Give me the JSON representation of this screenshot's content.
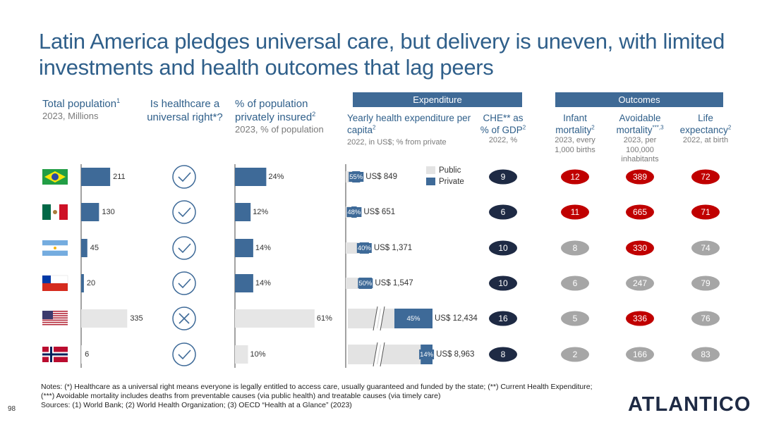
{
  "header": {
    "title": "Latin America pledges universal care, but delivery is uneven, with limited investments and health outcomes that lag peers"
  },
  "groups": {
    "expenditure": "Expenditure",
    "outcomes": "Outcomes"
  },
  "columns": {
    "population": {
      "title": "Total population",
      "sup": "1",
      "subtitle": "2023, Millions",
      "values": [
        211,
        130,
        45,
        20,
        335,
        6
      ],
      "colors": [
        "#3e6a98",
        "#3e6a98",
        "#3e6a98",
        "#3e6a98",
        "#e6e6e6",
        "#e6e6e6"
      ]
    },
    "universal": {
      "title": "Is healthcare a universal right*?",
      "values": [
        true,
        true,
        true,
        true,
        false,
        true
      ],
      "color": "#3e6a98"
    },
    "insured": {
      "title": "% of population privately insured",
      "sup": "2",
      "subtitle": "2023, % of population",
      "values": [
        24,
        12,
        14,
        14,
        61,
        10
      ],
      "value_labels": [
        "24%",
        "12%",
        "14%",
        "14%",
        "61%",
        "10%"
      ],
      "colors": [
        "#3e6a98",
        "#3e6a98",
        "#3e6a98",
        "#3e6a98",
        "#e6e6e6",
        "#e6e6e6"
      ]
    },
    "spend": {
      "title": "Yearly health expenditure per capita",
      "sup": "2",
      "subtitle": "2022, in US$; % from private",
      "values": [
        849,
        651,
        1371,
        1547,
        12434,
        8963
      ],
      "value_labels": [
        "US$ 849",
        "US$ 651",
        "US$ 1,371",
        "US$ 1,547",
        "US$ 12,434",
        "US$ 8,963"
      ],
      "private_share": [
        55,
        48,
        40,
        50,
        45,
        14
      ],
      "private_share_labels": [
        "55%",
        "48%",
        "40%",
        "50%",
        "45%",
        "14%"
      ],
      "axis_break": [
        false,
        false,
        false,
        false,
        true,
        true
      ],
      "legend": [
        "Public",
        "Private"
      ],
      "public_color": "#e3e3e3",
      "private_color": "#3e6a98"
    },
    "che": {
      "title": "CHE** as % of GDP",
      "sup": "2",
      "subtitle": "2022, %",
      "values": [
        9,
        6,
        10,
        10,
        16,
        8
      ],
      "color": "#1e2a44"
    },
    "infant": {
      "title": "Infant mortality",
      "sup": "2",
      "subtitle": "2023, every 1,000 births",
      "values": [
        12,
        11,
        8,
        6,
        5,
        2
      ],
      "colors": [
        "#c00000",
        "#c00000",
        "#a6a6a6",
        "#a6a6a6",
        "#a6a6a6",
        "#a6a6a6"
      ]
    },
    "avoidable": {
      "title": "Avoidable mortality",
      "sup": "***,3",
      "subtitle": "2023, per 100,000 inhabitants",
      "values": [
        389,
        665,
        330,
        247,
        336,
        166
      ],
      "colors": [
        "#c00000",
        "#c00000",
        "#c00000",
        "#a6a6a6",
        "#c00000",
        "#a6a6a6"
      ]
    },
    "life": {
      "title": "Life expectancy",
      "sup": "2",
      "subtitle": "2022, at birth",
      "values": [
        72,
        71,
        74,
        79,
        76,
        83
      ],
      "colors": [
        "#c00000",
        "#c00000",
        "#a6a6a6",
        "#a6a6a6",
        "#a6a6a6",
        "#a6a6a6"
      ]
    }
  },
  "notes": [
    "Notes: (*) Healthcare as a universal right means everyone is legally entitled to access care, usually guaranteed and funded by the state; (**) Current Health Expenditure; (***) Avoidable mortality includes deaths from preventable causes (via public health) and treatable causes (via timely care)",
    "Sources: (1) World Bank; (2) World Health Organization; (3) OECD “Health at a Glance” (2023)"
  ],
  "page_number": "98",
  "logo": "ATLANTICO"
}
